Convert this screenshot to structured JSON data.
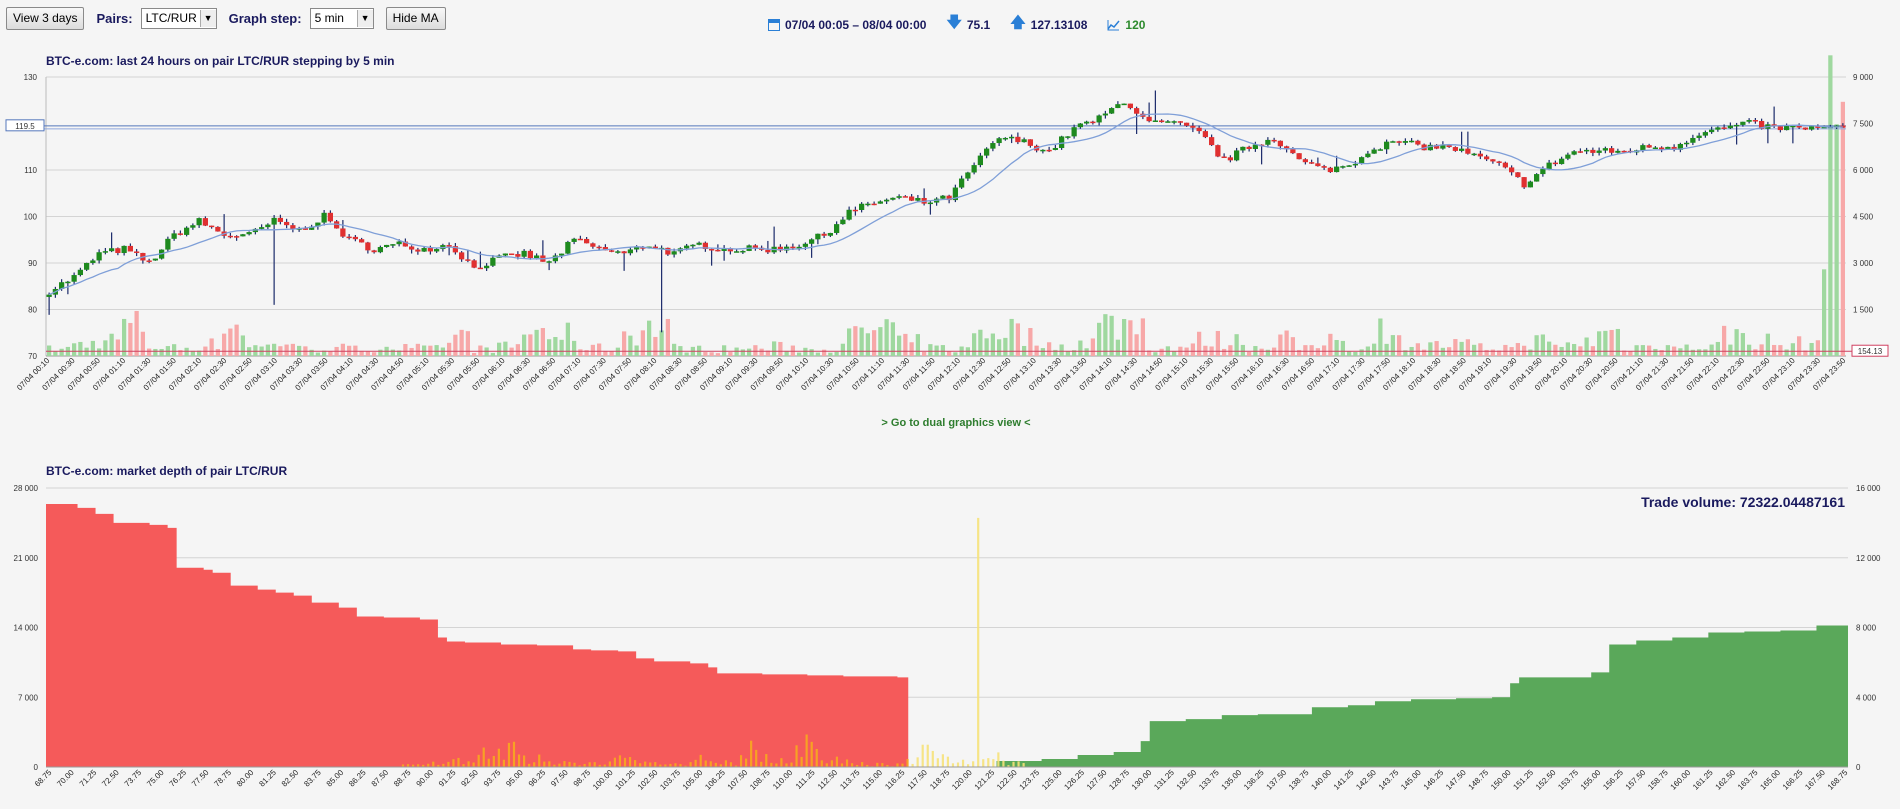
{
  "toolbar": {
    "view_button": "View 3 days",
    "pairs_label": "Pairs:",
    "pairs_value": "LTC/RUR",
    "step_label": "Graph step:",
    "step_value": "5 min",
    "ma_button": "Hide MA"
  },
  "info": {
    "range": "07/04 00:05 – 08/04 00:00",
    "low": "75.1",
    "high": "127.13108",
    "count": "120"
  },
  "colors": {
    "up": "#1e8a1e",
    "down": "#e03030",
    "bid": "#f55a5a",
    "ask": "#5aa85a",
    "vol_up": "#9fd89f",
    "vol_down": "#f7a8a8",
    "ma": "#7f9fd8"
  },
  "dual_link": "> Go to dual graphics view <",
  "chart_data": [
    {
      "type": "candlestick",
      "title": "BTC-e.com: last 24 hours on pair LTC/RUR stepping by 5 min",
      "y_left": {
        "min": 70,
        "max": 130,
        "ticks": [
          "130",
          "110",
          "100",
          "90",
          "80",
          "70"
        ]
      },
      "y_right": {
        "min": 0,
        "max": 9000,
        "ticks": [
          "9 000",
          "7 500",
          "6 000",
          "4 500",
          "3 000",
          "1 500"
        ]
      },
      "price_marker": "119.5",
      "volume_marker": "154.13",
      "x_labels": [
        "07/04 00:10",
        "07/04 00:30",
        "07/04 00:50",
        "07/04 01:10",
        "07/04 01:30",
        "07/04 01:50",
        "07/04 02:10",
        "07/04 02:30",
        "07/04 02:50",
        "07/04 03:10",
        "07/04 03:30",
        "07/04 03:50",
        "07/04 04:10",
        "07/04 04:30",
        "07/04 04:50",
        "07/04 05:10",
        "07/04 05:30",
        "07/04 05:50",
        "07/04 06:10",
        "07/04 06:30",
        "07/04 06:50",
        "07/04 07:10",
        "07/04 07:30",
        "07/04 07:50",
        "07/04 08:10",
        "07/04 08:30",
        "07/04 08:50",
        "07/04 09:10",
        "07/04 09:30",
        "07/04 09:50",
        "07/04 10:10",
        "07/04 10:30",
        "07/04 10:50",
        "07/04 11:10",
        "07/04 11:30",
        "07/04 11:50",
        "07/04 12:10",
        "07/04 12:30",
        "07/04 12:50",
        "07/04 13:10",
        "07/04 13:30",
        "07/04 13:50",
        "07/04 14:10",
        "07/04 14:30",
        "07/04 14:50",
        "07/04 15:10",
        "07/04 15:30",
        "07/04 15:50",
        "07/04 16:10",
        "07/04 16:30",
        "07/04 16:50",
        "07/04 17:10",
        "07/04 17:30",
        "07/04 17:50",
        "07/04 18:10",
        "07/04 18:30",
        "07/04 18:50",
        "07/04 19:10",
        "07/04 19:30",
        "07/04 19:50",
        "07/04 20:10",
        "07/04 20:30",
        "07/04 20:50",
        "07/04 21:10",
        "07/04 21:30",
        "07/04 21:50",
        "07/04 22:10",
        "07/04 22:30",
        "07/04 22:50",
        "07/04 23:10",
        "07/04 23:30",
        "07/04 23:50"
      ],
      "close_anchors": [
        84,
        87,
        92,
        93,
        90,
        96,
        99,
        96,
        96,
        99,
        97,
        100,
        95,
        93,
        94,
        93,
        94,
        89,
        91,
        92,
        90,
        95,
        93,
        92,
        94,
        92,
        94,
        93,
        93,
        93,
        94,
        96,
        101,
        103,
        104,
        103,
        104,
        111,
        117,
        116,
        114,
        119,
        121,
        125,
        120,
        120,
        118,
        112,
        115,
        117,
        112,
        110,
        111,
        115,
        116,
        115,
        115,
        113,
        111,
        107,
        111,
        114,
        114,
        114,
        115,
        115,
        118,
        119,
        120,
        119,
        119,
        119
      ],
      "volume_anchors": [
        300,
        520,
        700,
        1300,
        400,
        350,
        500,
        1300,
        400,
        600,
        300,
        350,
        300,
        400,
        350,
        300,
        850,
        300,
        400,
        1050,
        900,
        450,
        350,
        1050,
        1200,
        350,
        300,
        300,
        350,
        400,
        300,
        350,
        900,
        1250,
        600,
        350,
        300,
        1050,
        1150,
        800,
        400,
        600,
        1350,
        1400,
        350,
        400,
        700,
        650,
        400,
        800,
        300,
        750,
        350,
        1150,
        600,
        450,
        500,
        350,
        400,
        650,
        450,
        600,
        1000,
        400,
        550,
        350,
        450,
        900,
        650,
        450,
        550,
        8200
      ]
    },
    {
      "type": "area",
      "title": "BTC-e.com: market depth of pair LTC/RUR",
      "annotation": "Trade volume: 72322.04487161",
      "y_left": {
        "min": 0,
        "max": 28000,
        "ticks": [
          "28 000",
          "21 000",
          "14 000",
          "7 000",
          "0"
        ]
      },
      "y_right": {
        "min": 0,
        "max": 16000,
        "ticks": [
          "16 000",
          "12 000",
          "8 000",
          "4 000",
          "0"
        ]
      },
      "x_labels": [
        "68.75",
        "70.00",
        "71.25",
        "72.50",
        "73.75",
        "75.00",
        "76.25",
        "77.50",
        "78.75",
        "80.00",
        "81.25",
        "82.50",
        "83.75",
        "85.00",
        "86.25",
        "87.50",
        "88.75",
        "90.00",
        "91.25",
        "92.50",
        "93.75",
        "95.00",
        "96.25",
        "97.50",
        "98.75",
        "100.00",
        "101.25",
        "102.50",
        "103.75",
        "105.00",
        "106.25",
        "107.50",
        "108.75",
        "110.00",
        "111.25",
        "112.50",
        "113.75",
        "115.00",
        "116.25",
        "117.50",
        "118.75",
        "120.00",
        "121.25",
        "122.50",
        "123.75",
        "125.00",
        "126.25",
        "127.50",
        "128.75",
        "130.00",
        "131.25",
        "132.50",
        "133.75",
        "135.00",
        "136.25",
        "137.50",
        "138.75",
        "140.00",
        "141.25",
        "142.50",
        "143.75",
        "145.00",
        "146.25",
        "147.50",
        "148.75",
        "150.00",
        "151.25",
        "152.50",
        "153.75",
        "155.00",
        "156.25",
        "157.50",
        "158.75",
        "160.00",
        "161.25",
        "162.50",
        "163.75",
        "165.00",
        "166.25",
        "167.50",
        "168.75"
      ],
      "bids": [
        [
          68.75,
          26400
        ],
        [
          70.5,
          26000
        ],
        [
          71.5,
          25400
        ],
        [
          72.5,
          24500
        ],
        [
          74.5,
          24300
        ],
        [
          75.5,
          24000
        ],
        [
          76,
          20000
        ],
        [
          77.5,
          19800
        ],
        [
          78,
          19500
        ],
        [
          79,
          18200
        ],
        [
          80.5,
          17800
        ],
        [
          81.5,
          17500
        ],
        [
          82.5,
          17200
        ],
        [
          83.5,
          16500
        ],
        [
          85,
          16000
        ],
        [
          86,
          15100
        ],
        [
          87.5,
          15000
        ],
        [
          89.5,
          14800
        ],
        [
          90.5,
          13000
        ],
        [
          91,
          12600
        ],
        [
          92,
          12500
        ],
        [
          94,
          12300
        ],
        [
          96,
          12200
        ],
        [
          98,
          11800
        ],
        [
          99,
          11700
        ],
        [
          100.5,
          11600
        ],
        [
          101.5,
          10900
        ],
        [
          102.5,
          10600
        ],
        [
          104.5,
          10400
        ],
        [
          105.5,
          10000
        ],
        [
          106,
          9400
        ],
        [
          108.5,
          9300
        ],
        [
          111,
          9200
        ],
        [
          113,
          9100
        ],
        [
          116,
          9000
        ]
      ],
      "asks": [
        [
          121.5,
          600
        ],
        [
          124,
          800
        ],
        [
          126,
          1200
        ],
        [
          128,
          1500
        ],
        [
          129.5,
          2600
        ],
        [
          130,
          4600
        ],
        [
          132,
          4800
        ],
        [
          134,
          5200
        ],
        [
          136,
          5300
        ],
        [
          139,
          6000
        ],
        [
          141,
          6200
        ],
        [
          142.5,
          6600
        ],
        [
          144.5,
          6800
        ],
        [
          147,
          6900
        ],
        [
          149,
          7000
        ],
        [
          150,
          8400
        ],
        [
          150.5,
          9000
        ],
        [
          154.5,
          9500
        ],
        [
          155.5,
          12300
        ],
        [
          157,
          12700
        ],
        [
          159,
          13000
        ],
        [
          161,
          13500
        ],
        [
          163,
          13600
        ],
        [
          165,
          13700
        ],
        [
          167,
          14200
        ],
        [
          168.75,
          14300
        ]
      ],
      "trades_anchors": [
        [
          90,
          500
        ],
        [
          91.5,
          1200
        ],
        [
          93,
          2000
        ],
        [
          94.5,
          3000
        ],
        [
          96,
          1500
        ],
        [
          97.5,
          800
        ],
        [
          99,
          600
        ],
        [
          100.5,
          1600
        ],
        [
          102,
          900
        ],
        [
          103.5,
          500
        ],
        [
          105,
          1200
        ],
        [
          106.5,
          700
        ],
        [
          108,
          2500
        ],
        [
          109.5,
          900
        ],
        [
          111,
          3800
        ],
        [
          112.5,
          1000
        ],
        [
          114,
          600
        ],
        [
          115,
          400
        ],
        [
          116.5,
          800
        ],
        [
          117.5,
          3000
        ],
        [
          118.5,
          1500
        ],
        [
          119.5,
          700
        ],
        [
          120.5,
          25000
        ],
        [
          121.5,
          1500
        ],
        [
          122.5,
          700
        ]
      ]
    }
  ]
}
